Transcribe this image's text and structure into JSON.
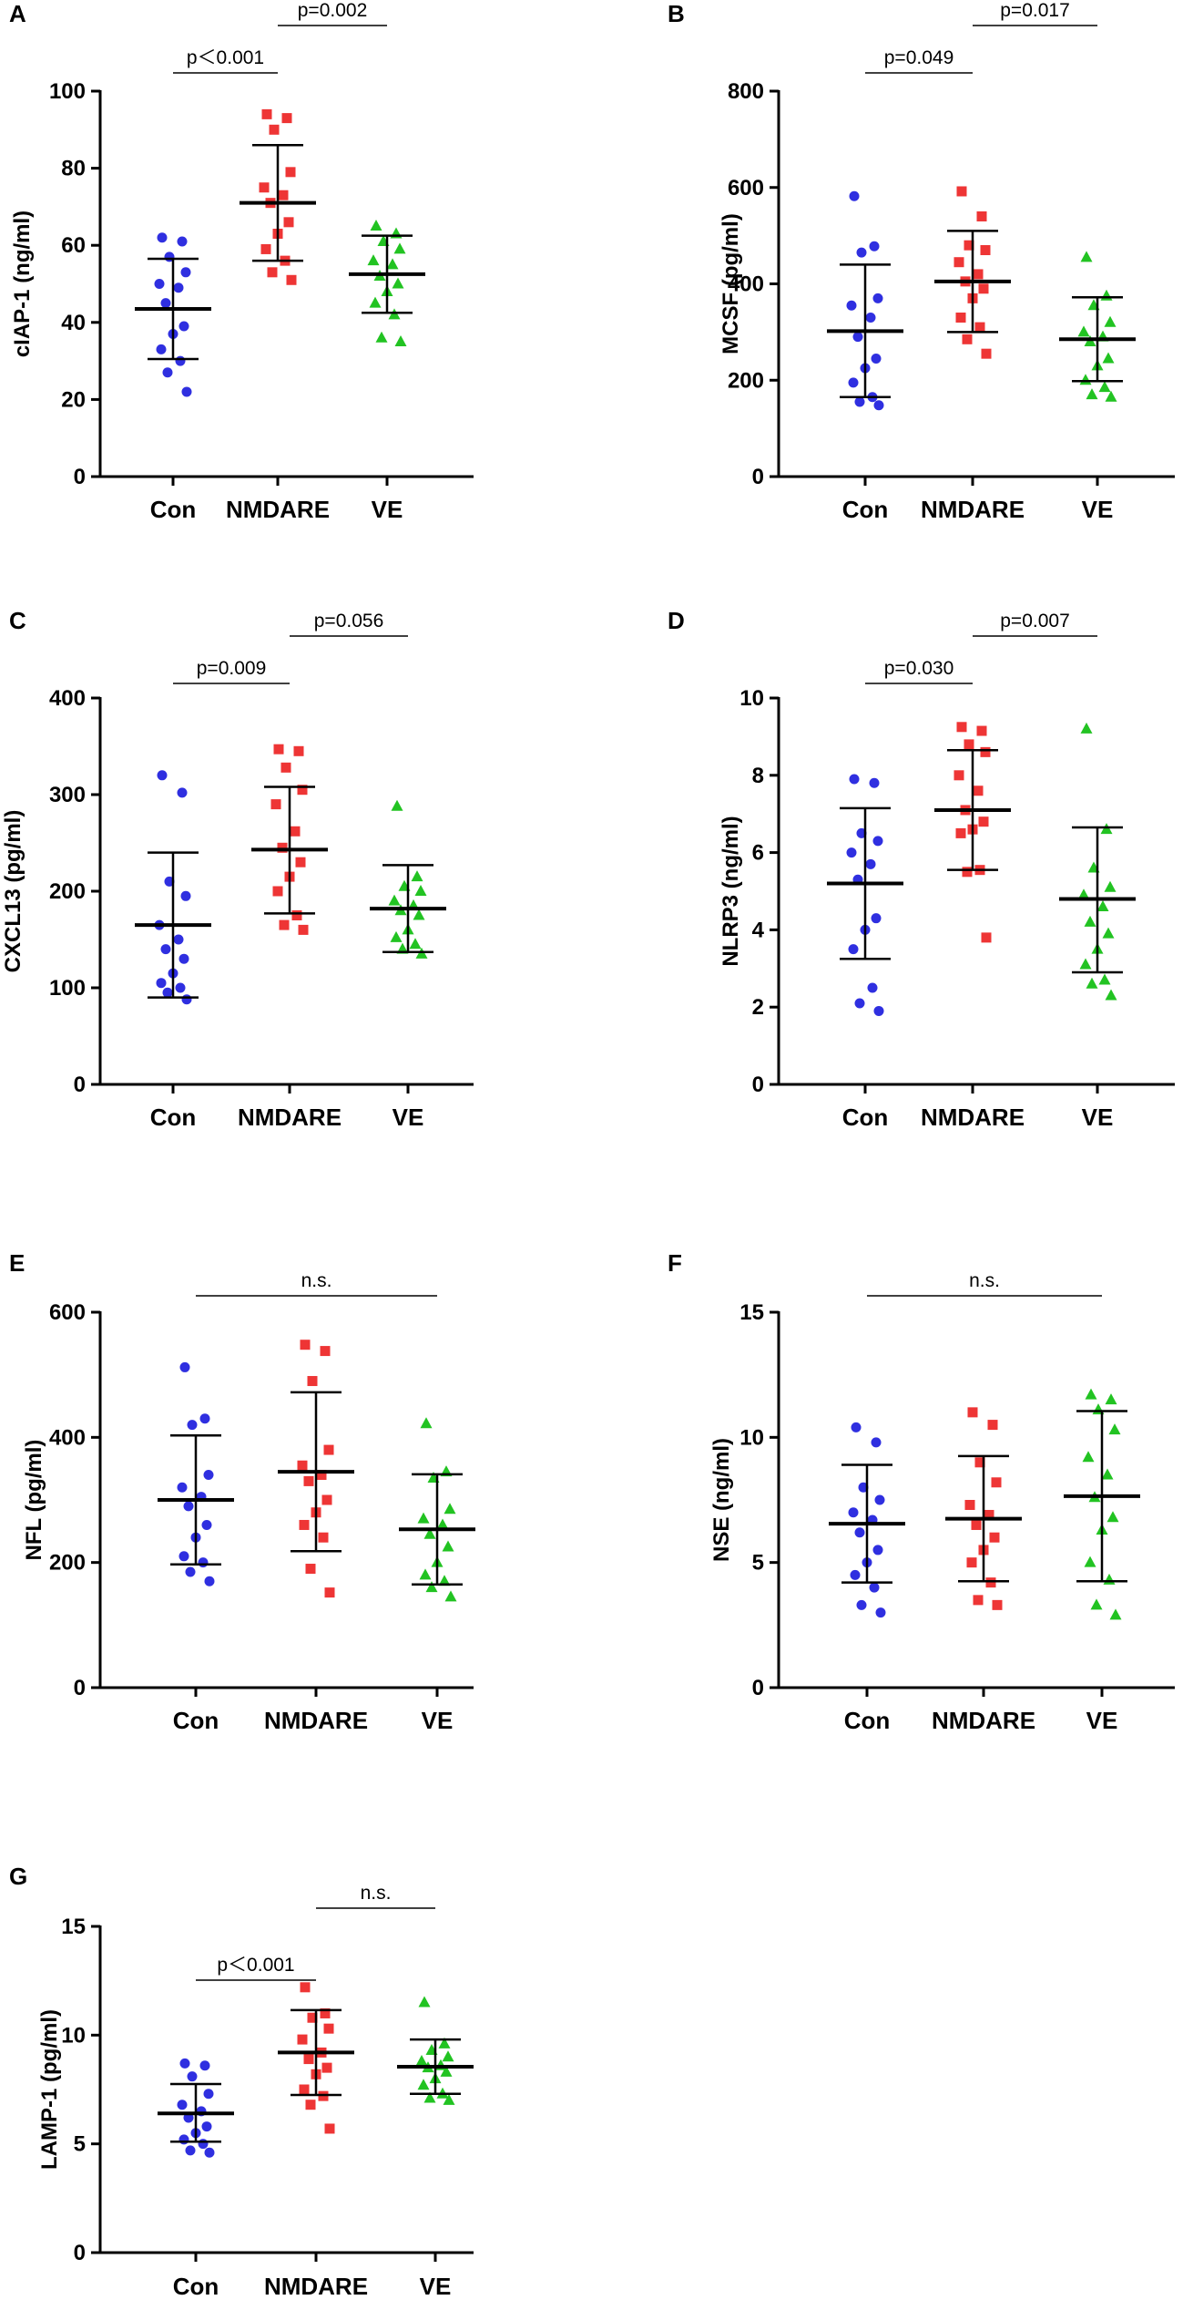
{
  "figure": {
    "categories": [
      "Con",
      "NMDARE",
      "VE"
    ],
    "colors": {
      "Con": "#2f2fe0",
      "NMDARE": "#ee3535",
      "VE": "#22c322",
      "axis": "#000000",
      "line": "#000000"
    },
    "markers": {
      "Con": "circle",
      "NMDARE": "square",
      "VE": "triangle"
    }
  },
  "chart_data": [
    {
      "panel": "A",
      "type": "scatter",
      "ylabel": "cIAP-1 (ng/ml)",
      "ylim": [
        0,
        100
      ],
      "yticks": [
        0,
        20,
        40,
        60,
        80,
        100
      ],
      "categories": [
        "Con",
        "NMDARE",
        "VE"
      ],
      "series": [
        {
          "name": "Con",
          "mean": 43.5,
          "sd_low": 30.5,
          "sd_high": 56.5,
          "values": [
            62,
            61,
            57,
            53,
            50,
            49,
            45,
            39,
            37,
            33,
            30,
            27,
            22
          ]
        },
        {
          "name": "NMDARE",
          "mean": 71,
          "sd_low": 56,
          "sd_high": 86,
          "values": [
            94,
            93,
            90,
            79,
            75,
            73,
            71,
            66,
            63,
            59,
            56,
            53,
            51
          ]
        },
        {
          "name": "VE",
          "mean": 52.5,
          "sd_low": 42.5,
          "sd_high": 62.5,
          "values": [
            65,
            63,
            61,
            59,
            56,
            55,
            52,
            50,
            48,
            45,
            42,
            36,
            35
          ]
        }
      ],
      "comparisons": [
        {
          "from": "Con",
          "to": "NMDARE",
          "label": "p＜0.001",
          "level": 0
        },
        {
          "from": "NMDARE",
          "to": "VE",
          "label": "p=0.002",
          "level": 1
        }
      ]
    },
    {
      "panel": "B",
      "type": "scatter",
      "ylabel": "MCSF (pg/ml)",
      "ylim": [
        0,
        800
      ],
      "yticks": [
        0,
        200,
        400,
        600,
        800
      ],
      "categories": [
        "Con",
        "NMDARE",
        "VE"
      ],
      "series": [
        {
          "name": "Con",
          "mean": 302,
          "sd_low": 165,
          "sd_high": 440,
          "values": [
            582,
            478,
            465,
            370,
            355,
            330,
            290,
            245,
            225,
            195,
            165,
            155,
            148
          ]
        },
        {
          "name": "NMDARE",
          "mean": 405,
          "sd_low": 300,
          "sd_high": 510,
          "values": [
            592,
            540,
            480,
            470,
            445,
            420,
            405,
            390,
            370,
            330,
            310,
            285,
            255
          ]
        },
        {
          "name": "VE",
          "mean": 285,
          "sd_low": 198,
          "sd_high": 372,
          "values": [
            455,
            375,
            355,
            320,
            300,
            290,
            280,
            245,
            230,
            200,
            185,
            170,
            165
          ]
        }
      ],
      "comparisons": [
        {
          "from": "Con",
          "to": "NMDARE",
          "label": "p=0.049",
          "level": 0
        },
        {
          "from": "NMDARE",
          "to": "VE",
          "label": "p=0.017",
          "level": 1
        }
      ]
    },
    {
      "panel": "C",
      "type": "scatter",
      "ylabel": "CXCL13 (pg/ml)",
      "ylim": [
        0,
        400
      ],
      "yticks": [
        0,
        100,
        200,
        300,
        400
      ],
      "categories": [
        "Con",
        "NMDARE",
        "VE"
      ],
      "series": [
        {
          "name": "Con",
          "mean": 165,
          "sd_low": 90,
          "sd_high": 240,
          "values": [
            320,
            302,
            210,
            195,
            165,
            150,
            140,
            130,
            115,
            105,
            100,
            95,
            88
          ]
        },
        {
          "name": "NMDARE",
          "mean": 243,
          "sd_low": 177,
          "sd_high": 308,
          "values": [
            347,
            345,
            328,
            305,
            290,
            262,
            245,
            230,
            215,
            200,
            175,
            165,
            160
          ]
        },
        {
          "name": "VE",
          "mean": 182,
          "sd_low": 137,
          "sd_high": 227,
          "values": [
            288,
            215,
            205,
            200,
            190,
            185,
            180,
            175,
            160,
            152,
            145,
            140,
            135
          ]
        }
      ],
      "comparisons": [
        {
          "from": "Con",
          "to": "NMDARE",
          "label": "p=0.009",
          "level": 0
        },
        {
          "from": "NMDARE",
          "to": "VE",
          "label": "p=0.056",
          "level": 1
        }
      ]
    },
    {
      "panel": "D",
      "type": "scatter",
      "ylabel": "NLRP3 (ng/ml)",
      "ylim": [
        0,
        10
      ],
      "yticks": [
        0,
        2,
        4,
        6,
        8,
        10
      ],
      "categories": [
        "Con",
        "NMDARE",
        "VE"
      ],
      "series": [
        {
          "name": "Con",
          "mean": 5.2,
          "sd_low": 3.25,
          "sd_high": 7.15,
          "values": [
            7.9,
            7.8,
            6.5,
            6.3,
            6.0,
            5.7,
            5.3,
            4.3,
            4.0,
            3.5,
            2.5,
            2.1,
            1.9
          ]
        },
        {
          "name": "NMDARE",
          "mean": 7.1,
          "sd_low": 5.55,
          "sd_high": 8.65,
          "values": [
            9.25,
            9.15,
            8.8,
            8.6,
            8.0,
            7.6,
            7.1,
            6.8,
            6.6,
            6.5,
            5.55,
            5.5,
            3.8
          ]
        },
        {
          "name": "VE",
          "mean": 4.8,
          "sd_low": 2.9,
          "sd_high": 6.65,
          "values": [
            9.2,
            6.6,
            5.6,
            5.1,
            4.9,
            4.6,
            4.2,
            3.9,
            3.5,
            3.1,
            2.7,
            2.6,
            2.3
          ]
        }
      ],
      "comparisons": [
        {
          "from": "Con",
          "to": "NMDARE",
          "label": "p=0.030",
          "level": 0
        },
        {
          "from": "NMDARE",
          "to": "VE",
          "label": "p=0.007",
          "level": 1
        }
      ]
    },
    {
      "panel": "E",
      "type": "scatter",
      "ylabel": "NFL (pg/ml)",
      "ylim": [
        0,
        600
      ],
      "yticks": [
        0,
        200,
        400,
        600
      ],
      "categories": [
        "Con",
        "NMDARE",
        "VE"
      ],
      "series": [
        {
          "name": "Con",
          "mean": 300,
          "sd_low": 197,
          "sd_high": 403,
          "values": [
            512,
            430,
            420,
            340,
            320,
            305,
            290,
            260,
            240,
            210,
            200,
            185,
            170
          ]
        },
        {
          "name": "NMDARE",
          "mean": 345,
          "sd_low": 218,
          "sd_high": 472,
          "values": [
            548,
            538,
            490,
            380,
            355,
            340,
            330,
            300,
            280,
            260,
            240,
            190,
            152
          ]
        },
        {
          "name": "VE",
          "mean": 253,
          "sd_low": 165,
          "sd_high": 341,
          "values": [
            422,
            345,
            335,
            285,
            270,
            260,
            245,
            225,
            200,
            180,
            170,
            160,
            145
          ]
        }
      ],
      "comparisons": [
        {
          "from": "Con",
          "to": "VE",
          "label": "n.s.",
          "level": 0
        }
      ]
    },
    {
      "panel": "F",
      "type": "scatter",
      "ylabel": "NSE (ng/ml)",
      "ylim": [
        0,
        15
      ],
      "yticks": [
        0,
        5,
        10,
        15
      ],
      "categories": [
        "Con",
        "NMDARE",
        "VE"
      ],
      "series": [
        {
          "name": "Con",
          "mean": 6.55,
          "sd_low": 4.2,
          "sd_high": 8.9,
          "values": [
            10.4,
            9.8,
            8.0,
            7.5,
            7.0,
            6.7,
            6.2,
            5.5,
            5.0,
            4.5,
            4.0,
            3.3,
            3.0
          ]
        },
        {
          "name": "NMDARE",
          "mean": 6.75,
          "sd_low": 4.25,
          "sd_high": 9.25,
          "values": [
            11.0,
            10.5,
            9.0,
            8.2,
            7.3,
            6.9,
            6.5,
            6.0,
            5.5,
            5.0,
            4.2,
            3.5,
            3.3
          ]
        },
        {
          "name": "VE",
          "mean": 7.65,
          "sd_low": 4.25,
          "sd_high": 11.05,
          "values": [
            11.7,
            11.5,
            11.1,
            10.3,
            9.2,
            8.5,
            7.6,
            6.8,
            6.3,
            5.0,
            4.3,
            3.3,
            2.9
          ]
        }
      ],
      "comparisons": [
        {
          "from": "Con",
          "to": "VE",
          "label": "n.s.",
          "level": 0
        }
      ]
    },
    {
      "panel": "G",
      "type": "scatter",
      "ylabel": "LAMP-1 (pg/ml)",
      "ylim": [
        0,
        15
      ],
      "yticks": [
        0,
        5,
        10,
        15
      ],
      "categories": [
        "Con",
        "NMDARE",
        "VE"
      ],
      "series": [
        {
          "name": "Con",
          "mean": 6.4,
          "sd_low": 5.1,
          "sd_high": 7.75,
          "values": [
            8.7,
            8.6,
            8.1,
            7.3,
            6.8,
            6.5,
            6.2,
            5.8,
            5.5,
            5.2,
            5.0,
            4.7,
            4.6
          ]
        },
        {
          "name": "NMDARE",
          "mean": 9.2,
          "sd_low": 7.25,
          "sd_high": 11.15,
          "values": [
            12.2,
            11.0,
            10.8,
            10.3,
            9.8,
            9.2,
            8.9,
            8.5,
            8.2,
            7.5,
            7.2,
            6.8,
            5.7
          ]
        },
        {
          "name": "VE",
          "mean": 8.55,
          "sd_low": 7.3,
          "sd_high": 9.8,
          "values": [
            11.5,
            9.6,
            9.3,
            9.0,
            8.8,
            8.6,
            8.5,
            8.3,
            8.0,
            7.7,
            7.3,
            7.1,
            7.0
          ]
        }
      ],
      "comparisons": [
        {
          "from": "Con",
          "to": "NMDARE",
          "label": "p＜0.001",
          "level": 0
        },
        {
          "from": "NMDARE",
          "to": "VE",
          "label": "n.s.",
          "level": 1
        }
      ]
    }
  ]
}
